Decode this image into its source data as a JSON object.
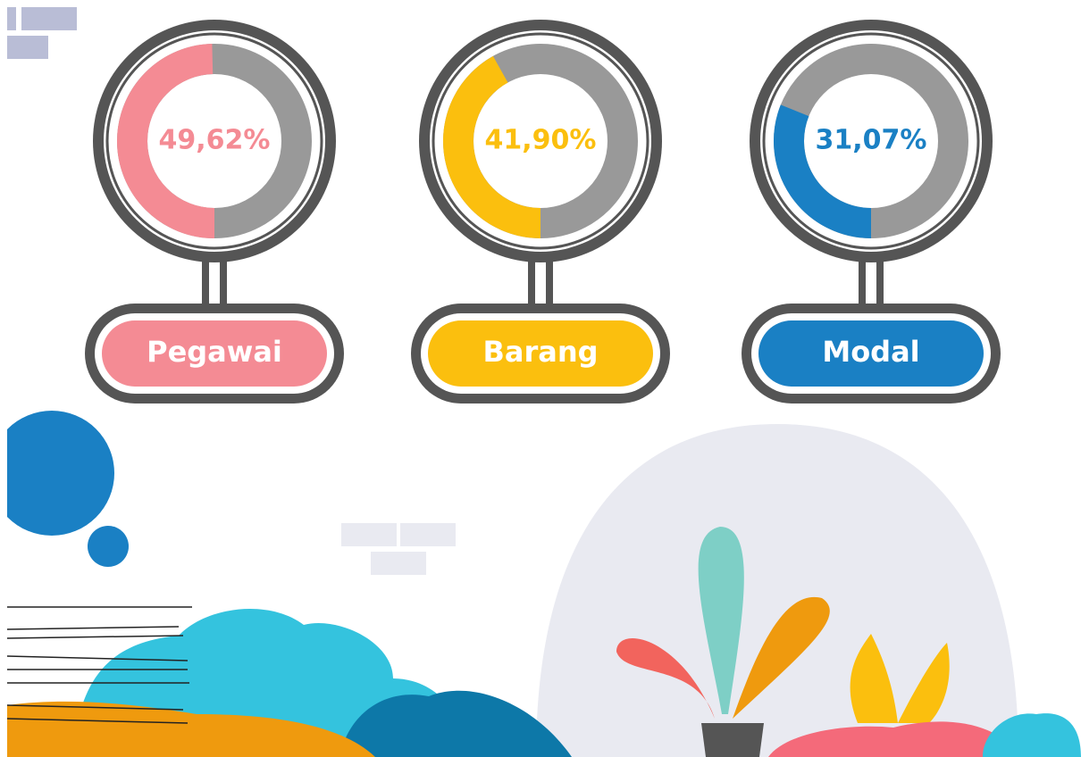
{
  "chart_data": [
    {
      "type": "donut",
      "title": "Pegawai",
      "values": [
        49.62
      ],
      "value_labels": [
        "49,62%"
      ],
      "color": "#f48b94"
    },
    {
      "type": "donut",
      "title": "Barang",
      "values": [
        41.9
      ],
      "value_labels": [
        "41,90%"
      ],
      "color": "#fbbf0e"
    },
    {
      "type": "donut",
      "title": "Modal",
      "values": [
        31.07
      ],
      "value_labels": [
        "31,07%"
      ],
      "color": "#1a80c4"
    }
  ]
}
